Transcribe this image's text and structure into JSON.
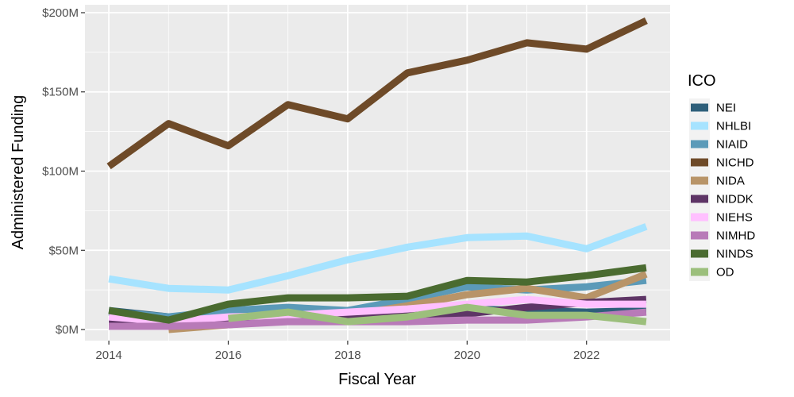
{
  "chart_data": {
    "type": "line",
    "title": "",
    "xlabel": "Fiscal Year",
    "ylabel": "Administered Funding",
    "xlim": [
      2013.6,
      2023.4
    ],
    "ylim": [
      -7,
      205
    ],
    "x_ticks": [
      2014,
      2016,
      2018,
      2020,
      2022
    ],
    "x_tick_labels": [
      "2014",
      "2016",
      "2018",
      "2020",
      "2022"
    ],
    "y_ticks": [
      0,
      50,
      100,
      150,
      200
    ],
    "y_tick_labels": [
      "$0M",
      "$50M",
      "$100M",
      "$150M",
      "$200M"
    ],
    "grid": true,
    "legend_title": "ICO",
    "legend_position": "right",
    "series": [
      {
        "name": "NEI",
        "color": "#2e5f7a",
        "x": [
          2014,
          2015,
          2016,
          2017,
          2018,
          2019,
          2020,
          2021,
          2022,
          2023
        ],
        "values": [
          12,
          8,
          10,
          12,
          10,
          11,
          13,
          12,
          11,
          12
        ]
      },
      {
        "name": "NHLBI",
        "color": "#a6e3ff",
        "x": [
          2014,
          2015,
          2016,
          2017,
          2018,
          2019,
          2020,
          2021,
          2022,
          2023
        ],
        "values": [
          32,
          26,
          25,
          34,
          44,
          52,
          58,
          59,
          51,
          65
        ]
      },
      {
        "name": "NIAID",
        "color": "#5b9ab8",
        "x": [
          2014,
          2015,
          2016,
          2017,
          2018,
          2019,
          2020,
          2021,
          2022,
          2023
        ],
        "values": [
          11,
          8,
          12,
          14,
          12,
          19,
          27,
          25,
          27,
          31
        ]
      },
      {
        "name": "NICHD",
        "color": "#6e4a28",
        "x": [
          2014,
          2015,
          2016,
          2017,
          2018,
          2019,
          2020,
          2021,
          2022,
          2023
        ],
        "values": [
          103,
          130,
          116,
          142,
          133,
          162,
          170,
          181,
          177,
          195
        ]
      },
      {
        "name": "NIDA",
        "color": "#b89468",
        "x": [
          2015,
          2016,
          2017,
          2018,
          2019,
          2020,
          2021,
          2022,
          2023
        ],
        "values": [
          0,
          3,
          6,
          9,
          15,
          22,
          26,
          20,
          35
        ]
      },
      {
        "name": "NIDDK",
        "color": "#5e3566",
        "x": [
          2014,
          2015,
          2016,
          2017,
          2018,
          2019,
          2020,
          2021,
          2022,
          2023
        ],
        "values": [
          5,
          5,
          6,
          7,
          7,
          9,
          10,
          14,
          17,
          19
        ]
      },
      {
        "name": "NIEHS",
        "color": "#ffc0ff",
        "x": [
          2014,
          2015,
          2016,
          2017,
          2018,
          2019,
          2020,
          2021,
          2022,
          2023
        ],
        "values": [
          8,
          5,
          8,
          9,
          11,
          13,
          16,
          19,
          16,
          16
        ]
      },
      {
        "name": "NIMHD",
        "color": "#b87ab8",
        "x": [
          2014,
          2015,
          2016,
          2017,
          2018,
          2019,
          2020,
          2021,
          2022,
          2023
        ],
        "values": [
          2,
          2,
          3,
          5,
          5,
          5,
          6,
          6,
          8,
          11
        ]
      },
      {
        "name": "NINDS",
        "color": "#4a6b30",
        "x": [
          2014,
          2015,
          2016,
          2017,
          2018,
          2019,
          2020,
          2021,
          2022,
          2023
        ],
        "values": [
          12,
          6,
          16,
          20,
          20,
          21,
          31,
          30,
          34,
          39
        ]
      },
      {
        "name": "OD",
        "color": "#9cbf7c",
        "x": [
          2016,
          2017,
          2018,
          2019,
          2020,
          2021,
          2022,
          2023
        ],
        "values": [
          7,
          11,
          5,
          8,
          14,
          9,
          9,
          5
        ]
      }
    ]
  }
}
